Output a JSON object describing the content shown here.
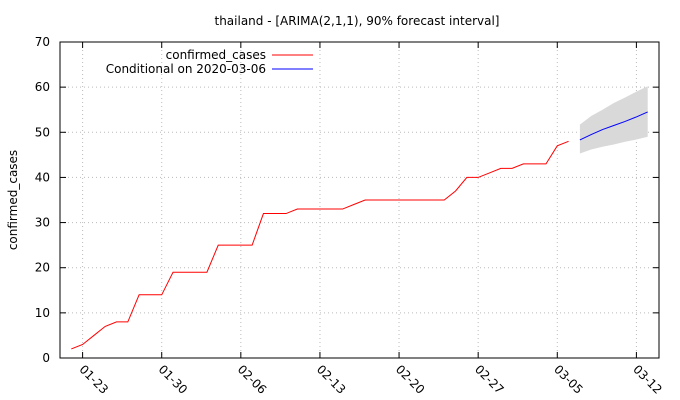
{
  "chart_data": {
    "type": "line",
    "title": "thailand -  [ARIMA(2,1,1), 90% forecast interval]",
    "ylabel": "confirmed_cases",
    "xlabel": "",
    "ylim": [
      0,
      70
    ],
    "yticks": [
      0,
      10,
      20,
      30,
      40,
      50,
      60,
      70
    ],
    "xlim": [
      "2020-01-21",
      "2020-03-14"
    ],
    "xticks": [
      {
        "date": "2020-01-23",
        "label": "01-23"
      },
      {
        "date": "2020-01-30",
        "label": "01-30"
      },
      {
        "date": "2020-02-06",
        "label": "02-06"
      },
      {
        "date": "2020-02-13",
        "label": "02-13"
      },
      {
        "date": "2020-02-20",
        "label": "02-20"
      },
      {
        "date": "2020-02-27",
        "label": "02-27"
      },
      {
        "date": "2020-03-05",
        "label": "03-05"
      },
      {
        "date": "2020-03-12",
        "label": "03-12"
      }
    ],
    "grid": true,
    "legend_position": "top-left",
    "series": [
      {
        "name": "confirmed_cases",
        "color": "#ff0000",
        "points": [
          [
            "2020-01-22",
            2
          ],
          [
            "2020-01-23",
            3
          ],
          [
            "2020-01-24",
            5
          ],
          [
            "2020-01-25",
            7
          ],
          [
            "2020-01-26",
            8
          ],
          [
            "2020-01-27",
            8
          ],
          [
            "2020-01-28",
            14
          ],
          [
            "2020-01-29",
            14
          ],
          [
            "2020-01-30",
            14
          ],
          [
            "2020-01-31",
            19
          ],
          [
            "2020-02-01",
            19
          ],
          [
            "2020-02-02",
            19
          ],
          [
            "2020-02-03",
            19
          ],
          [
            "2020-02-04",
            25
          ],
          [
            "2020-02-05",
            25
          ],
          [
            "2020-02-06",
            25
          ],
          [
            "2020-02-07",
            25
          ],
          [
            "2020-02-08",
            32
          ],
          [
            "2020-02-09",
            32
          ],
          [
            "2020-02-10",
            32
          ],
          [
            "2020-02-11",
            33
          ],
          [
            "2020-02-12",
            33
          ],
          [
            "2020-02-13",
            33
          ],
          [
            "2020-02-14",
            33
          ],
          [
            "2020-02-15",
            33
          ],
          [
            "2020-02-16",
            34
          ],
          [
            "2020-02-17",
            35
          ],
          [
            "2020-02-18",
            35
          ],
          [
            "2020-02-19",
            35
          ],
          [
            "2020-02-20",
            35
          ],
          [
            "2020-02-21",
            35
          ],
          [
            "2020-02-22",
            35
          ],
          [
            "2020-02-23",
            35
          ],
          [
            "2020-02-24",
            35
          ],
          [
            "2020-02-25",
            37
          ],
          [
            "2020-02-26",
            40
          ],
          [
            "2020-02-27",
            40
          ],
          [
            "2020-02-28",
            41
          ],
          [
            "2020-02-29",
            42
          ],
          [
            "2020-03-01",
            42
          ],
          [
            "2020-03-02",
            43
          ],
          [
            "2020-03-03",
            43
          ],
          [
            "2020-03-04",
            43
          ],
          [
            "2020-03-05",
            47
          ],
          [
            "2020-03-06",
            48
          ]
        ]
      },
      {
        "name": "Conditional on 2020-03-06",
        "color": "#0000ff",
        "points": [
          [
            "2020-03-07",
            48.3
          ],
          [
            "2020-03-08",
            49.5
          ],
          [
            "2020-03-09",
            50.6
          ],
          [
            "2020-03-10",
            51.5
          ],
          [
            "2020-03-11",
            52.4
          ],
          [
            "2020-03-12",
            53.4
          ],
          [
            "2020-03-13",
            54.5
          ]
        ]
      }
    ],
    "forecast_interval": {
      "color": "#d9d9d9",
      "lower": [
        [
          "2020-03-07",
          45.3
        ],
        [
          "2020-03-08",
          46.2
        ],
        [
          "2020-03-09",
          46.8
        ],
        [
          "2020-03-10",
          47.3
        ],
        [
          "2020-03-11",
          47.9
        ],
        [
          "2020-03-12",
          48.4
        ],
        [
          "2020-03-13",
          49.0
        ]
      ],
      "upper": [
        [
          "2020-03-07",
          51.7
        ],
        [
          "2020-03-08",
          53.6
        ],
        [
          "2020-03-09",
          55.0
        ],
        [
          "2020-03-10",
          56.5
        ],
        [
          "2020-03-11",
          57.7
        ],
        [
          "2020-03-12",
          59.0
        ],
        [
          "2020-03-13",
          60.2
        ]
      ]
    }
  }
}
